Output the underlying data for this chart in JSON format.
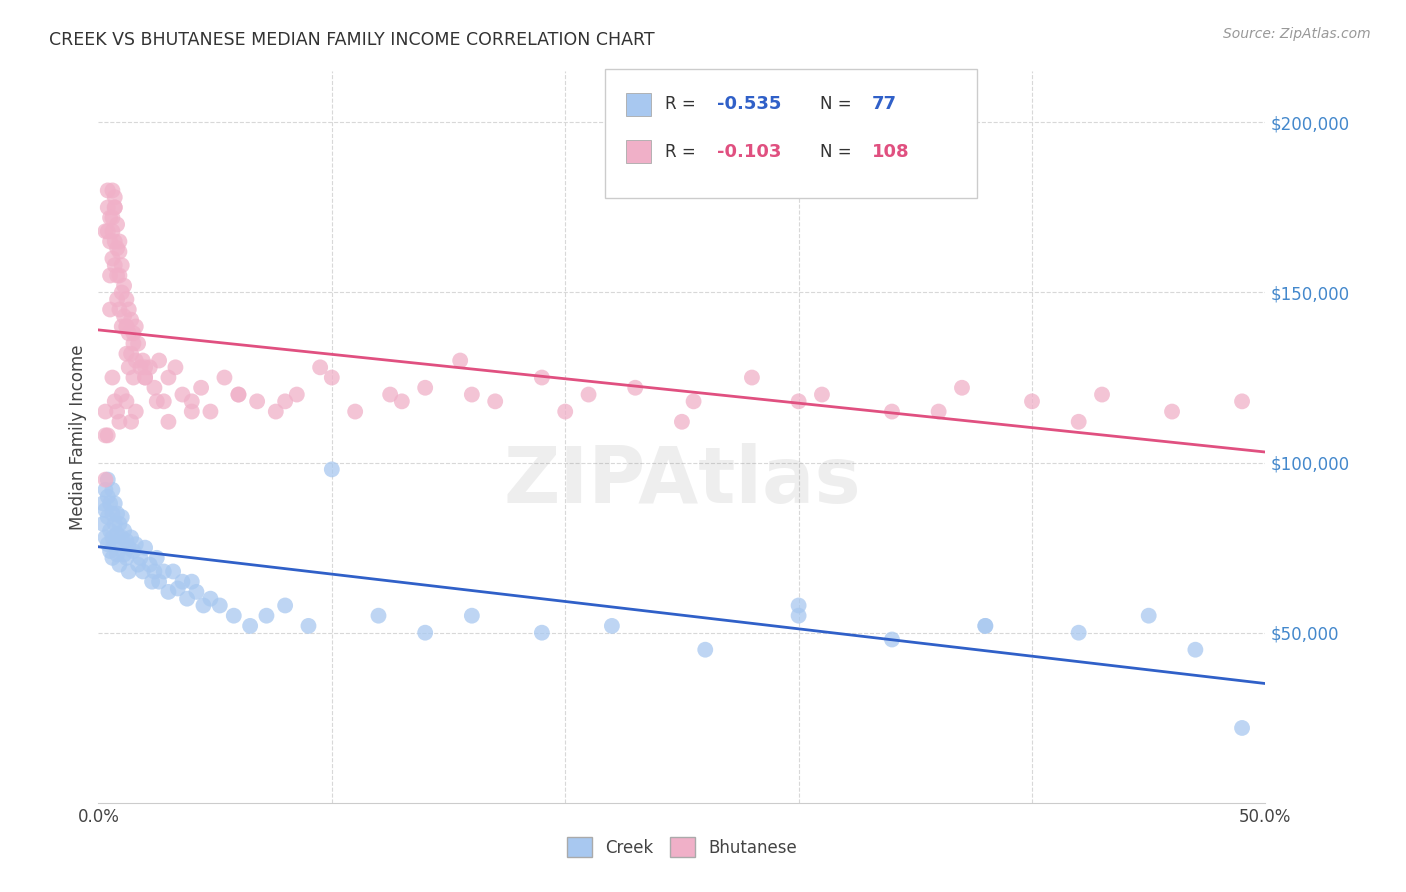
{
  "title": "CREEK VS BHUTANESE MEDIAN FAMILY INCOME CORRELATION CHART",
  "source": "Source: ZipAtlas.com",
  "ylabel": "Median Family Income",
  "xlim": [
    0.0,
    0.5
  ],
  "ylim": [
    0,
    215000
  ],
  "ytick_labels": [
    "$50,000",
    "$100,000",
    "$150,000",
    "$200,000"
  ],
  "ytick_values": [
    50000,
    100000,
    150000,
    200000
  ],
  "background_color": "#ffffff",
  "grid_color": "#d8d8d8",
  "creek_color": "#a8c8f0",
  "bhutanese_color": "#f0b0c8",
  "creek_line_color": "#3060c8",
  "bhutanese_line_color": "#e05080",
  "creek_R": -0.535,
  "creek_N": 77,
  "bhutanese_R": -0.103,
  "bhutanese_N": 108,
  "creek_x": [
    0.002,
    0.002,
    0.003,
    0.003,
    0.003,
    0.004,
    0.004,
    0.004,
    0.004,
    0.005,
    0.005,
    0.005,
    0.006,
    0.006,
    0.006,
    0.006,
    0.007,
    0.007,
    0.007,
    0.008,
    0.008,
    0.008,
    0.009,
    0.009,
    0.009,
    0.01,
    0.01,
    0.011,
    0.011,
    0.012,
    0.012,
    0.013,
    0.013,
    0.014,
    0.015,
    0.016,
    0.017,
    0.018,
    0.019,
    0.02,
    0.022,
    0.023,
    0.024,
    0.025,
    0.026,
    0.028,
    0.03,
    0.032,
    0.034,
    0.036,
    0.038,
    0.04,
    0.042,
    0.045,
    0.048,
    0.052,
    0.058,
    0.065,
    0.072,
    0.08,
    0.09,
    0.1,
    0.12,
    0.14,
    0.16,
    0.19,
    0.22,
    0.26,
    0.3,
    0.34,
    0.38,
    0.42,
    0.45,
    0.47,
    0.49,
    0.3,
    0.38
  ],
  "creek_y": [
    88000,
    82000,
    92000,
    86000,
    78000,
    90000,
    84000,
    95000,
    76000,
    88000,
    80000,
    74000,
    92000,
    85000,
    78000,
    72000,
    88000,
    82000,
    76000,
    85000,
    79000,
    73000,
    82000,
    76000,
    70000,
    84000,
    78000,
    80000,
    73000,
    77000,
    72000,
    75000,
    68000,
    78000,
    74000,
    76000,
    70000,
    72000,
    68000,
    75000,
    70000,
    65000,
    68000,
    72000,
    65000,
    68000,
    62000,
    68000,
    63000,
    65000,
    60000,
    65000,
    62000,
    58000,
    60000,
    58000,
    55000,
    52000,
    55000,
    58000,
    52000,
    98000,
    55000,
    50000,
    55000,
    50000,
    52000,
    45000,
    58000,
    48000,
    52000,
    50000,
    55000,
    45000,
    22000,
    55000,
    52000
  ],
  "bhutanese_x": [
    0.003,
    0.003,
    0.004,
    0.004,
    0.005,
    0.005,
    0.005,
    0.006,
    0.006,
    0.006,
    0.006,
    0.007,
    0.007,
    0.007,
    0.007,
    0.008,
    0.008,
    0.008,
    0.008,
    0.009,
    0.009,
    0.009,
    0.01,
    0.01,
    0.01,
    0.011,
    0.011,
    0.012,
    0.012,
    0.012,
    0.013,
    0.013,
    0.013,
    0.014,
    0.014,
    0.015,
    0.015,
    0.016,
    0.016,
    0.017,
    0.018,
    0.019,
    0.02,
    0.022,
    0.024,
    0.026,
    0.028,
    0.03,
    0.033,
    0.036,
    0.04,
    0.044,
    0.048,
    0.054,
    0.06,
    0.068,
    0.076,
    0.085,
    0.095,
    0.11,
    0.125,
    0.14,
    0.155,
    0.17,
    0.19,
    0.21,
    0.23,
    0.255,
    0.28,
    0.31,
    0.34,
    0.37,
    0.4,
    0.43,
    0.46,
    0.49,
    0.003,
    0.004,
    0.006,
    0.007,
    0.008,
    0.009,
    0.01,
    0.012,
    0.014,
    0.016,
    0.02,
    0.025,
    0.03,
    0.04,
    0.06,
    0.08,
    0.1,
    0.13,
    0.16,
    0.2,
    0.25,
    0.3,
    0.36,
    0.42,
    0.003,
    0.004,
    0.005,
    0.007,
    0.009,
    0.012,
    0.015,
    0.02
  ],
  "bhutanese_y": [
    115000,
    108000,
    175000,
    168000,
    165000,
    155000,
    145000,
    172000,
    180000,
    168000,
    160000,
    175000,
    178000,
    165000,
    158000,
    170000,
    163000,
    155000,
    148000,
    162000,
    155000,
    145000,
    158000,
    150000,
    140000,
    152000,
    143000,
    148000,
    140000,
    132000,
    145000,
    138000,
    128000,
    142000,
    132000,
    138000,
    125000,
    140000,
    130000,
    135000,
    128000,
    130000,
    125000,
    128000,
    122000,
    130000,
    118000,
    125000,
    128000,
    120000,
    118000,
    122000,
    115000,
    125000,
    120000,
    118000,
    115000,
    120000,
    128000,
    115000,
    120000,
    122000,
    130000,
    118000,
    125000,
    120000,
    122000,
    118000,
    125000,
    120000,
    115000,
    122000,
    118000,
    120000,
    115000,
    118000,
    95000,
    108000,
    125000,
    118000,
    115000,
    112000,
    120000,
    118000,
    112000,
    115000,
    125000,
    118000,
    112000,
    115000,
    120000,
    118000,
    125000,
    118000,
    120000,
    115000,
    112000,
    118000,
    115000,
    112000,
    168000,
    180000,
    172000,
    175000,
    165000,
    140000,
    135000,
    128000
  ]
}
